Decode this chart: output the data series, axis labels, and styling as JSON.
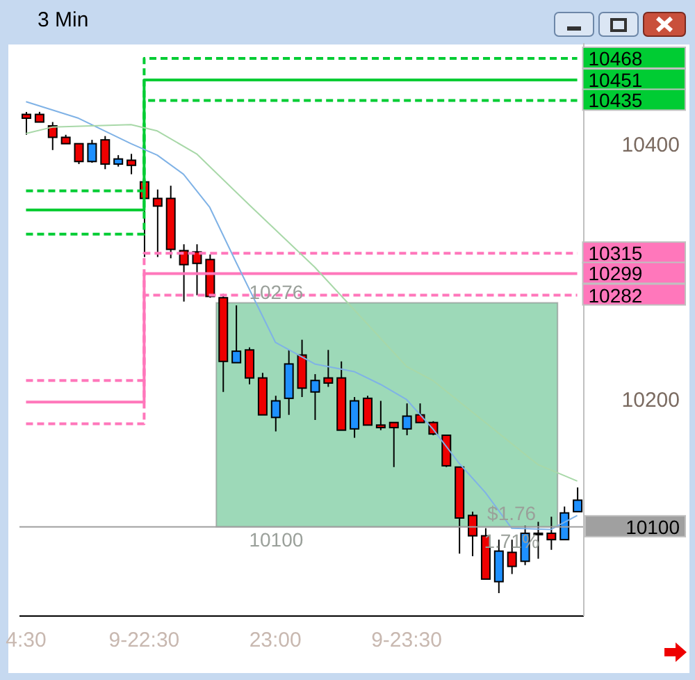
{
  "chart_data": {
    "type": "candlestick",
    "title": "3 Min",
    "categories": [
      "4:30",
      null,
      null,
      null,
      null,
      null,
      null,
      null,
      null,
      "9-22:30",
      null,
      null,
      null,
      null,
      null,
      null,
      null,
      null,
      null,
      "23:00",
      null,
      null,
      null,
      null,
      null,
      null,
      null,
      null,
      null,
      "9-23:30",
      null,
      null,
      null,
      null,
      null,
      null,
      null,
      null,
      null,
      null,
      null,
      null,
      null
    ],
    "ohlc": [
      [
        10424,
        10426,
        10408,
        10421
      ],
      [
        10424,
        10426,
        10418,
        10418
      ],
      [
        10415,
        10418,
        10396,
        10406
      ],
      [
        10406,
        10408,
        10401,
        10401
      ],
      [
        10401,
        10401,
        10385,
        10387
      ],
      [
        10387,
        10404,
        10386,
        10401
      ],
      [
        10404,
        10407,
        10381,
        10385
      ],
      [
        10385,
        10392,
        10383,
        10389
      ],
      [
        10388,
        10393,
        10377,
        10384
      ],
      [
        10371,
        10371,
        10312,
        10358
      ],
      [
        10358,
        10365,
        10312,
        10352
      ],
      [
        10358,
        10368,
        10311,
        10318
      ],
      [
        10317,
        10322,
        10277,
        10306
      ],
      [
        10316,
        10322,
        10282,
        10307
      ],
      [
        10310,
        10314,
        10280,
        10281
      ],
      [
        10280,
        10283,
        10206,
        10230
      ],
      [
        10229,
        10274,
        10229,
        10238
      ],
      [
        10239,
        10241,
        10212,
        10217
      ],
      [
        10217,
        10221,
        10188,
        10188
      ],
      [
        10186,
        10203,
        10175,
        10199
      ],
      [
        10201,
        10239,
        10188,
        10228
      ],
      [
        10235,
        10247,
        10202,
        10209
      ],
      [
        10206,
        10220,
        10184,
        10215
      ],
      [
        10217,
        10239,
        10210,
        10213
      ],
      [
        10217,
        10230,
        10176,
        10176
      ],
      [
        10177,
        10202,
        10170,
        10199
      ],
      [
        10201,
        10203,
        10180,
        10180
      ],
      [
        10180,
        10199,
        10176,
        10178
      ],
      [
        10182,
        10182,
        10147,
        10178
      ],
      [
        10177,
        10197,
        10172,
        10187
      ],
      [
        10188,
        10197,
        10182,
        10182
      ],
      [
        10182,
        10183,
        10172,
        10173
      ],
      [
        10172,
        10172,
        10147,
        10148
      ],
      [
        10147,
        10147,
        10079,
        10107
      ],
      [
        10109,
        10112,
        10077,
        10093
      ],
      [
        10093,
        10099,
        10059,
        10059
      ],
      [
        10057,
        10090,
        10048,
        10081
      ],
      [
        10080,
        10090,
        10063,
        10069
      ],
      [
        10073,
        10101,
        10070,
        10095
      ],
      [
        10095,
        10104,
        10075,
        10094
      ],
      [
        10095,
        10108,
        10082,
        10090
      ],
      [
        10090,
        10116,
        10090,
        10111
      ],
      [
        10112,
        10131,
        10112,
        10121
      ]
    ],
    "colors": [
      "#ee0000",
      "#ee0000",
      "#ee0000",
      "#ee0000",
      "#ee0000",
      "#1e90ff",
      "#ee0000",
      "#1e90ff",
      "#ee0000",
      "#ee0000",
      "#ee0000",
      "#ee0000",
      "#ee0000",
      "#ee0000",
      "#ee0000",
      "#ee0000",
      "#1e90ff",
      "#ee0000",
      "#ee0000",
      "#1e90ff",
      "#1e90ff",
      "#ee0000",
      "#1e90ff",
      "#ee0000",
      "#ee0000",
      "#1e90ff",
      "#ee0000",
      "#ee0000",
      "#ee0000",
      "#1e90ff",
      "#ee0000",
      "#ee0000",
      "#ee0000",
      "#ee0000",
      "#ee0000",
      "#ee0000",
      "#1e90ff",
      "#ee0000",
      "#1e90ff",
      "#ee0000",
      "#ee0000",
      "#1e90ff",
      "#1e90ff"
    ],
    "series": [
      {
        "type": "step",
        "color": "#00cc33",
        "line_style": "dashed",
        "values": [
          10364,
          10364,
          10364,
          10364,
          10364,
          10364,
          10364,
          10364,
          10364,
          10468,
          10468,
          10468,
          10468,
          10468,
          10468,
          10468,
          10468,
          10468,
          10468,
          10468,
          10468,
          10468,
          10468,
          10468,
          10468,
          10468,
          10468,
          10468,
          10468,
          10468,
          10468,
          10468,
          10468,
          10468,
          10468,
          10468,
          10468,
          10468,
          10468,
          10468,
          10468,
          10468,
          10468
        ],
        "value_labels": [
          null,
          null,
          null,
          null,
          null,
          null,
          null,
          null,
          null,
          null,
          null,
          null,
          null,
          null,
          null,
          null,
          null,
          null,
          null,
          null,
          null,
          null,
          null,
          null,
          null,
          null,
          null,
          null,
          null,
          null,
          null,
          null,
          null,
          null,
          null,
          null,
          null,
          null,
          null,
          null,
          null,
          null,
          "10468"
        ]
      },
      {
        "type": "step",
        "color": "#00cc33",
        "line_style": "solid",
        "values": [
          10349,
          10349,
          10349,
          10349,
          10349,
          10349,
          10349,
          10349,
          10349,
          10451,
          10451,
          10451,
          10451,
          10451,
          10451,
          10451,
          10451,
          10451,
          10451,
          10451,
          10451,
          10451,
          10451,
          10451,
          10451,
          10451,
          10451,
          10451,
          10451,
          10451,
          10451,
          10451,
          10451,
          10451,
          10451,
          10451,
          10451,
          10451,
          10451,
          10451,
          10451,
          10451,
          10451
        ],
        "value_labels": [
          null,
          null,
          null,
          null,
          null,
          null,
          null,
          null,
          null,
          null,
          null,
          null,
          null,
          null,
          null,
          null,
          null,
          null,
          null,
          null,
          null,
          null,
          null,
          null,
          null,
          null,
          null,
          null,
          null,
          null,
          null,
          null,
          null,
          null,
          null,
          null,
          null,
          null,
          null,
          null,
          null,
          null,
          "10451"
        ]
      },
      {
        "type": "step",
        "color": "#00cc33",
        "line_style": "dashed",
        "values": [
          10330,
          10330,
          10330,
          10330,
          10330,
          10330,
          10330,
          10330,
          10330,
          10435,
          10435,
          10435,
          10435,
          10435,
          10435,
          10435,
          10435,
          10435,
          10435,
          10435,
          10435,
          10435,
          10435,
          10435,
          10435,
          10435,
          10435,
          10435,
          10435,
          10435,
          10435,
          10435,
          10435,
          10435,
          10435,
          10435,
          10435,
          10435,
          10435,
          10435,
          10435,
          10435,
          10435
        ],
        "value_labels": [
          null,
          null,
          null,
          null,
          null,
          null,
          null,
          null,
          null,
          null,
          null,
          null,
          null,
          null,
          null,
          null,
          null,
          null,
          null,
          null,
          null,
          null,
          null,
          null,
          null,
          null,
          null,
          null,
          null,
          null,
          null,
          null,
          null,
          null,
          null,
          null,
          null,
          null,
          null,
          null,
          null,
          null,
          "10435"
        ]
      },
      {
        "type": "step",
        "color": "#ff77bb",
        "line_style": "dashed",
        "values": [
          10215,
          10215,
          10215,
          10215,
          10215,
          10215,
          10215,
          10215,
          10215,
          10315,
          10315,
          10315,
          10315,
          10315,
          10315,
          10315,
          10315,
          10315,
          10315,
          10315,
          10315,
          10315,
          10315,
          10315,
          10315,
          10315,
          10315,
          10315,
          10315,
          10315,
          10315,
          10315,
          10315,
          10315,
          10315,
          10315,
          10315,
          10315,
          10315,
          10315,
          10315,
          10315,
          10315
        ],
        "value_labels": [
          null,
          null,
          null,
          null,
          null,
          null,
          null,
          null,
          null,
          null,
          null,
          null,
          null,
          null,
          null,
          null,
          null,
          null,
          null,
          null,
          null,
          null,
          null,
          null,
          null,
          null,
          null,
          null,
          null,
          null,
          null,
          null,
          null,
          null,
          null,
          null,
          null,
          null,
          null,
          null,
          null,
          null,
          "10315"
        ]
      },
      {
        "type": "step",
        "color": "#ff77bb",
        "line_style": "solid",
        "values": [
          10198,
          10198,
          10198,
          10198,
          10198,
          10198,
          10198,
          10198,
          10198,
          10299,
          10299,
          10299,
          10299,
          10299,
          10299,
          10299,
          10299,
          10299,
          10299,
          10299,
          10299,
          10299,
          10299,
          10299,
          10299,
          10299,
          10299,
          10299,
          10299,
          10299,
          10299,
          10299,
          10299,
          10299,
          10299,
          10299,
          10299,
          10299,
          10299,
          10299,
          10299,
          10299,
          10299
        ],
        "value_labels": [
          null,
          null,
          null,
          null,
          null,
          null,
          null,
          null,
          null,
          null,
          null,
          null,
          null,
          null,
          null,
          null,
          null,
          null,
          null,
          null,
          null,
          null,
          null,
          null,
          null,
          null,
          null,
          null,
          null,
          null,
          null,
          null,
          null,
          null,
          null,
          null,
          null,
          null,
          null,
          null,
          null,
          null,
          "10299"
        ]
      },
      {
        "type": "step",
        "color": "#ff77bb",
        "line_style": "dashed",
        "values": [
          10181,
          10181,
          10181,
          10181,
          10181,
          10181,
          10181,
          10181,
          10181,
          10282,
          10282,
          10282,
          10282,
          10282,
          10282,
          10282,
          10282,
          10282,
          10282,
          10282,
          10282,
          10282,
          10282,
          10282,
          10282,
          10282,
          10282,
          10282,
          10282,
          10282,
          10282,
          10282,
          10282,
          10282,
          10282,
          10282,
          10282,
          10282,
          10282,
          10282,
          10282,
          10282,
          10282
        ],
        "value_labels": [
          null,
          null,
          null,
          null,
          null,
          null,
          null,
          null,
          null,
          null,
          null,
          null,
          null,
          null,
          null,
          null,
          null,
          null,
          null,
          null,
          null,
          null,
          null,
          null,
          null,
          null,
          null,
          null,
          null,
          null,
          null,
          null,
          null,
          null,
          null,
          null,
          null,
          null,
          null,
          null,
          null,
          null,
          "10282"
        ]
      },
      {
        "type": "line",
        "color": "#7fb2e6",
        "line_style": "solid",
        "values": [
          10434,
          null,
          null,
          null,
          10421,
          null,
          null,
          null,
          10401,
          null,
          10392,
          null,
          10377,
          null,
          10351,
          null,
          10308,
          null,
          null,
          10245,
          null,
          null,
          10228,
          null,
          null,
          10222,
          null,
          10212,
          null,
          10200,
          null,
          10177,
          null,
          10150,
          null,
          10127,
          null,
          10099,
          null,
          null,
          10098,
          null,
          10109
        ]
      },
      {
        "type": "line",
        "color": "#a8d8a8",
        "line_style": "solid",
        "values": [
          10409,
          null,
          10414,
          null,
          null,
          null,
          null,
          null,
          10416,
          null,
          10411,
          null,
          null,
          10393,
          null,
          null,
          null,
          10353,
          null,
          null,
          null,
          null,
          10304,
          null,
          null,
          null,
          null,
          null,
          null,
          10226,
          null,
          10215,
          null,
          null,
          null,
          null,
          null,
          null,
          null,
          10149,
          null,
          null,
          10136
        ]
      }
    ],
    "ylim": [
      10030,
      10480
    ],
    "yticks": [
      10200,
      10400
    ],
    "ref_lines": [
      {
        "axis": "y",
        "value": 10100,
        "label": "10100",
        "color": "#a0a0a0"
      }
    ],
    "bands": [
      {
        "axis": "y",
        "from": 10100,
        "to": 10276,
        "color": "#3cb371"
      }
    ],
    "annotations": [
      {
        "text": "10276",
        "y": 10276
      },
      {
        "text": "10100",
        "y": 10100
      },
      {
        "text": "$1.76",
        "y": 10100
      },
      {
        "text": "1.71%",
        "y": 10100
      }
    ]
  }
}
